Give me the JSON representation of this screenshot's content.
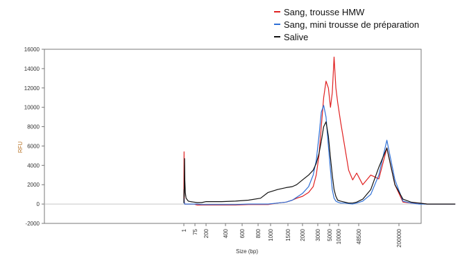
{
  "chart_data": {
    "type": "line",
    "xlabel": "Size (bp)",
    "ylabel": "RFU",
    "ylim": [
      -2000,
      16000
    ],
    "yticks": [
      -2000,
      0,
      2000,
      4000,
      6000,
      8000,
      10000,
      12000,
      14000,
      16000
    ],
    "xticks": [
      "1",
      "75",
      "200",
      "400",
      "600",
      "800",
      "1000",
      "1500",
      "2000",
      "3000",
      "5000",
      "10000",
      "48500",
      "200000"
    ],
    "legend_position": "top-right",
    "grid": false,
    "series": [
      {
        "name": "Sang, trousse HMW",
        "color": "#e02020",
        "x": [
          0,
          0.02,
          0.04,
          0.06,
          0.09,
          0.13,
          0.2,
          0.4,
          0.6,
          0.9,
          1.2,
          1.6,
          2.0,
          2.8,
          3.6,
          4.4,
          5.2,
          5.8,
          6.4,
          6.9,
          7.3,
          7.6,
          8.0,
          8.4,
          8.7,
          8.9,
          9.1,
          9.3,
          9.5,
          9.7,
          9.9,
          10.1,
          10.3,
          10.5,
          10.7,
          10.9,
          11.1,
          11.3,
          11.5,
          11.7,
          11.9,
          12.1,
          12.3,
          12.5,
          12.7,
          12.9,
          13.1,
          13.3,
          13.5,
          13.7,
          13.9,
          14.1,
          14.4
        ],
        "y": [
          300,
          5400,
          300,
          100,
          0,
          0,
          0,
          0,
          0,
          0,
          -100,
          -100,
          -100,
          -100,
          -100,
          -50,
          -50,
          -50,
          100,
          200,
          400,
          600,
          800,
          1200,
          1800,
          3000,
          5000,
          8000,
          11000,
          12700,
          12000,
          10000,
          11500,
          15200,
          12000,
          10500,
          8500,
          6000,
          3500,
          2500,
          3200,
          2000,
          3000,
          2600,
          5800,
          2000,
          200,
          100,
          100,
          0,
          0,
          0,
          0
        ]
      },
      {
        "name": "Sang, mini trousse de préparation",
        "color": "#2e6fd6",
        "x": [
          0,
          0.02,
          0.04,
          0.06,
          0.09,
          0.13,
          0.2,
          0.4,
          0.6,
          0.9,
          1.2,
          1.6,
          2.0,
          2.8,
          3.6,
          4.4,
          5.2,
          5.8,
          6.4,
          6.9,
          7.3,
          7.6,
          8.0,
          8.4,
          8.7,
          8.9,
          9.1,
          9.3,
          9.5,
          9.7,
          9.9,
          10.1,
          10.3,
          10.5,
          10.7,
          10.9,
          11.1,
          11.3,
          11.5,
          11.7,
          11.9,
          12.1,
          12.3,
          12.5,
          12.7,
          12.9,
          13.1,
          13.3,
          13.5,
          13.7,
          13.9,
          14.1,
          14.4
        ],
        "y": [
          200,
          600,
          200,
          0,
          0,
          0,
          0,
          0,
          0,
          0,
          0,
          -50,
          -50,
          -50,
          -50,
          0,
          0,
          0,
          100,
          200,
          400,
          700,
          1100,
          1800,
          3000,
          4500,
          7000,
          9500,
          10200,
          9000,
          6000,
          3500,
          1500,
          600,
          300,
          200,
          100,
          100,
          50,
          0,
          100,
          300,
          1000,
          3000,
          6600,
          2500,
          300,
          100,
          0,
          0,
          0,
          0,
          0
        ]
      },
      {
        "name": "Salive",
        "color": "#111111",
        "x": [
          0,
          0.02,
          0.04,
          0.06,
          0.09,
          0.13,
          0.2,
          0.4,
          0.6,
          0.9,
          1.2,
          1.6,
          2.0,
          2.8,
          3.6,
          4.4,
          5.2,
          5.8,
          6.4,
          6.9,
          7.3,
          7.6,
          8.0,
          8.4,
          8.7,
          8.9,
          9.1,
          9.3,
          9.5,
          9.7,
          9.9,
          10.1,
          10.3,
          10.5,
          10.7,
          10.9,
          11.1,
          11.3,
          11.5,
          11.7,
          11.9,
          12.1,
          12.3,
          12.5,
          12.7,
          12.9,
          13.1,
          13.3,
          13.5,
          13.7,
          13.9,
          14.1,
          14.4
        ],
        "y": [
          100,
          1500,
          800,
          4700,
          2500,
          1200,
          600,
          300,
          250,
          200,
          150,
          150,
          250,
          250,
          300,
          400,
          600,
          1200,
          1500,
          1700,
          1800,
          2000,
          2500,
          3000,
          3500,
          4200,
          5200,
          6500,
          8000,
          8500,
          7000,
          4800,
          3000,
          1500,
          800,
          400,
          300,
          200,
          100,
          100,
          200,
          500,
          1500,
          3800,
          5800,
          2000,
          500,
          200,
          100,
          0,
          0,
          0,
          0
        ]
      }
    ]
  }
}
